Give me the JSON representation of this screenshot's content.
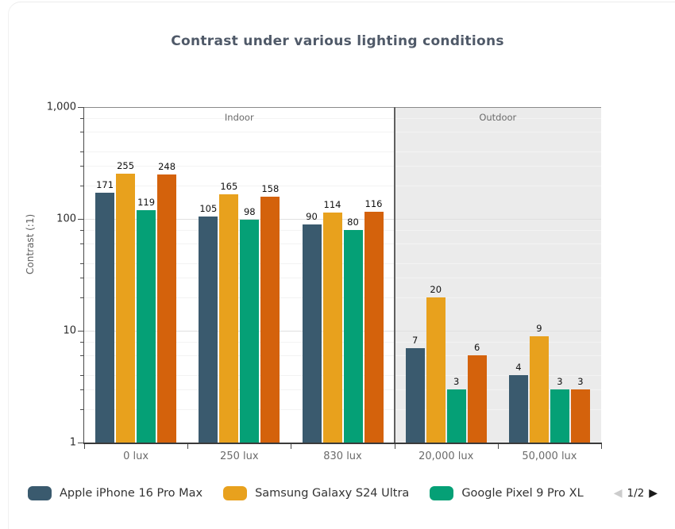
{
  "title": "Contrast under various lighting conditions",
  "chart_data": {
    "type": "bar",
    "scale": "log",
    "title": "Contrast under various lighting conditions",
    "xlabel": "",
    "ylabel": "Contrast (:1)",
    "ylim": [
      1,
      1000
    ],
    "y_ticks": [
      {
        "value": 1000,
        "label": "1,000"
      },
      {
        "value": 100,
        "label": "100"
      },
      {
        "value": 10,
        "label": "10"
      },
      {
        "value": 1,
        "label": "1"
      }
    ],
    "minor_grid_multiples": [
      2,
      3,
      4,
      6,
      8
    ],
    "categories": [
      "0 lux",
      "250 lux",
      "830 lux",
      "20,000 lux",
      "50,000 lux"
    ],
    "plot_bands": [
      {
        "label": "Indoor",
        "from_category": 0,
        "to_category": 3,
        "bg": "#ffffff"
      },
      {
        "label": "Outdoor",
        "from_category": 3,
        "to_category": 5,
        "bg": "#ebebeb"
      }
    ],
    "series": [
      {
        "name": "Apple iPhone 16 Pro Max",
        "color": "#3a5a6e",
        "values": [
          171,
          105,
          90,
          7,
          4
        ]
      },
      {
        "name": "Samsung Galaxy S24 Ultra",
        "color": "#e8a11d",
        "values": [
          255,
          165,
          114,
          20,
          9
        ]
      },
      {
        "name": "Google Pixel 9 Pro XL",
        "color": "#05a076",
        "values": [
          119,
          98,
          80,
          3,
          3
        ]
      },
      {
        "name": "",
        "color": "#d4620c",
        "values": [
          248,
          158,
          116,
          6,
          3
        ]
      }
    ],
    "legend_position": "bottom"
  },
  "legend": {
    "visible_series_indices": [
      0,
      1,
      2
    ],
    "pagination": {
      "label": "1/2",
      "prev_icon": "◀",
      "next_icon": "▶"
    }
  }
}
